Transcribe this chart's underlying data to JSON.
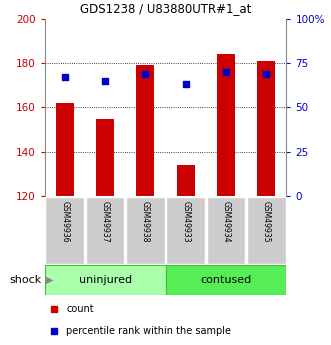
{
  "title": "GDS1238 / U83880UTR#1_at",
  "samples": [
    "GSM49936",
    "GSM49937",
    "GSM49938",
    "GSM49933",
    "GSM49934",
    "GSM49935"
  ],
  "groups": [
    "uninjured",
    "uninjured",
    "uninjured",
    "contused",
    "contused",
    "contused"
  ],
  "bar_bottom": 120,
  "counts": [
    162,
    155,
    179,
    134,
    184,
    181
  ],
  "percentile_ranks": [
    67,
    65,
    69,
    63,
    70,
    69
  ],
  "ylim_left": [
    120,
    200
  ],
  "ylim_right": [
    0,
    100
  ],
  "yticks_left": [
    120,
    140,
    160,
    180,
    200
  ],
  "yticks_right": [
    0,
    25,
    50,
    75,
    100
  ],
  "ytick_right_labels": [
    "0",
    "25",
    "50",
    "75",
    "100%"
  ],
  "bar_color": "#cc0000",
  "dot_color": "#0000cc",
  "bar_width": 0.45,
  "sample_box_color": "#cccccc",
  "uninjured_color_light": "#ccffcc",
  "uninjured_color_dark": "#55dd55",
  "contused_color_light": "#55ee55",
  "contused_color_dark": "#33cc33",
  "legend_count_label": "count",
  "legend_pct_label": "percentile rank within the sample",
  "left_tick_color": "#cc0000",
  "right_tick_color": "#0000cc",
  "title_fontsize": 8.5,
  "tick_fontsize": 7.5,
  "sample_fontsize": 5.5,
  "group_fontsize": 8,
  "legend_fontsize": 7
}
